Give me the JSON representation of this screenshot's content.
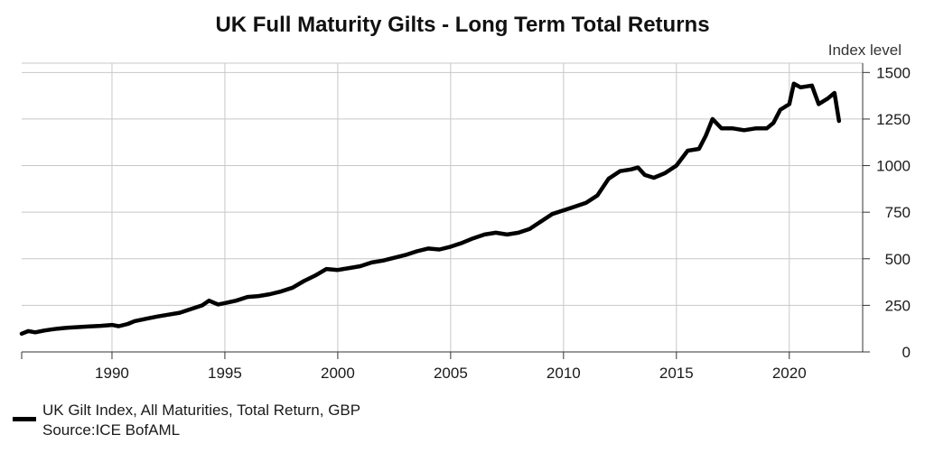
{
  "chart_data": {
    "type": "line",
    "title": "UK Full Maturity Gilts - Long Term Total Returns",
    "xlabel": "",
    "ylabel": "Index level",
    "xlim": [
      1986.0,
      2023.25
    ],
    "ylim": [
      0,
      1550
    ],
    "x_ticks": [
      1990,
      1995,
      2000,
      2005,
      2010,
      2015,
      2020
    ],
    "y_ticks": [
      0,
      250,
      500,
      750,
      1000,
      1250,
      1500
    ],
    "grid": true,
    "legend_position": "bottom-left",
    "series": [
      {
        "name": "UK Gilt Index, All Maturities, Total Return, GBP",
        "color": "#000000",
        "x": [
          1986.0,
          1986.3,
          1986.6,
          1987.0,
          1987.3,
          1987.6,
          1988.0,
          1988.5,
          1989.0,
          1989.5,
          1990.0,
          1990.3,
          1990.7,
          1991.0,
          1991.5,
          1992.0,
          1992.5,
          1993.0,
          1993.5,
          1994.0,
          1994.3,
          1994.7,
          1995.0,
          1995.5,
          1996.0,
          1996.5,
          1997.0,
          1997.5,
          1998.0,
          1998.5,
          1999.0,
          1999.5,
          2000.0,
          2000.5,
          2001.0,
          2001.5,
          2002.0,
          2002.5,
          2003.0,
          2003.5,
          2004.0,
          2004.5,
          2005.0,
          2005.5,
          2006.0,
          2006.5,
          2007.0,
          2007.5,
          2008.0,
          2008.5,
          2009.0,
          2009.5,
          2010.0,
          2010.5,
          2011.0,
          2011.5,
          2012.0,
          2012.5,
          2013.0,
          2013.3,
          2013.6,
          2014.0,
          2014.5,
          2015.0,
          2015.5,
          2016.0,
          2016.3,
          2016.6,
          2017.0,
          2017.5,
          2018.0,
          2018.5,
          2019.0,
          2019.3,
          2019.6,
          2020.0,
          2020.2,
          2020.5,
          2021.0,
          2021.3,
          2021.7,
          2022.0,
          2022.2
        ],
        "values": [
          98,
          112,
          105,
          115,
          120,
          125,
          130,
          133,
          137,
          140,
          145,
          138,
          150,
          165,
          178,
          190,
          200,
          210,
          230,
          250,
          275,
          255,
          262,
          275,
          295,
          300,
          310,
          325,
          345,
          380,
          410,
          445,
          440,
          450,
          460,
          480,
          490,
          505,
          520,
          540,
          555,
          550,
          565,
          585,
          610,
          630,
          640,
          630,
          640,
          660,
          700,
          740,
          760,
          780,
          800,
          840,
          930,
          970,
          980,
          990,
          950,
          935,
          960,
          1000,
          1080,
          1090,
          1160,
          1250,
          1200,
          1200,
          1190,
          1200,
          1200,
          1230,
          1300,
          1330,
          1440,
          1420,
          1430,
          1330,
          1360,
          1390,
          1240
        ]
      }
    ],
    "source": "Source:ICE BofAML"
  }
}
